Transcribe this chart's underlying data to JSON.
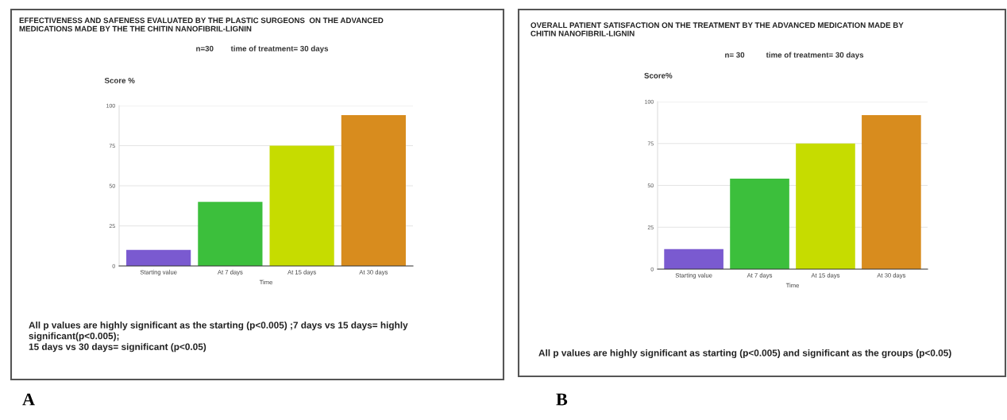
{
  "chart_data": [
    {
      "type": "bar",
      "title": "EFFECTIVENESS AND SAFENESS EVALUATED BY THE PLASTIC SURGEONS  ON THE ADVANCED\nMEDICATIONS MADE BY THE THE CHITIN NANOFIBRIL-LIGNIN",
      "subtitle": "n=30        time of treatment= 30 days",
      "ylabel": "Score %",
      "xlabel": "Time",
      "categories": [
        "Starting value",
        "At 7 days",
        "At 15 days",
        "At 30 days"
      ],
      "values": [
        10,
        40,
        75,
        94
      ],
      "colors": [
        "#7a5ad0",
        "#3cbf3c",
        "#c6dc00",
        "#d88c1e"
      ],
      "ylim": [
        0,
        100
      ],
      "yticks": [
        0,
        25,
        50,
        75,
        100
      ],
      "grid": "y",
      "annotations": [
        "All p values are highly significant as the starting (p<0.005) ;7 days vs 15 days= highly\nsignificant(p<0.005);\n15 days vs 30 days= significant (p<0.05)",
        "A"
      ]
    },
    {
      "type": "bar",
      "title": "OVERALL PATIENT SATISFACTION ON THE TREATMENT BY THE ADVANCED MEDICATION MADE BY\nCHITIN NANOFIBRIL-LIGNIN",
      "subtitle": "n= 30          time of treatment= 30 days",
      "ylabel": "Score%",
      "xlabel": "Time",
      "categories": [
        "Starting value",
        "At 7 days",
        "At 15 days",
        "At 30 days"
      ],
      "values": [
        12,
        54,
        75,
        92
      ],
      "colors": [
        "#7a5ad0",
        "#3cbf3c",
        "#c6dc00",
        "#d88c1e"
      ],
      "ylim": [
        0,
        100
      ],
      "yticks": [
        0,
        25,
        50,
        75,
        100
      ],
      "grid": "y",
      "annotations": [
        "All p values are highly significant as starting (p<0.005) and significant as the groups (p<0.05)",
        "B"
      ]
    }
  ]
}
